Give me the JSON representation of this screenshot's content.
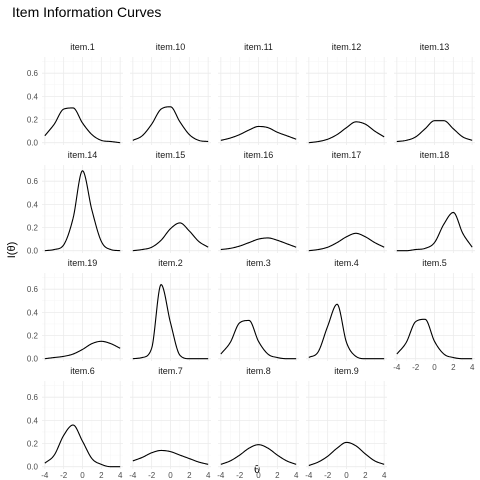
{
  "chart_data": {
    "type": "line",
    "title": "Item Information Curves",
    "xlabel": "θ",
    "ylabel": "I(θ)",
    "xlim": [
      -4.3,
      4.3
    ],
    "ylim": [
      -0.02,
      0.74
    ],
    "x_ticks": [
      -4,
      -2,
      0,
      2,
      4
    ],
    "y_ticks": [
      0.0,
      0.2,
      0.4,
      0.6
    ],
    "x_tick_labels": [
      "-4",
      "-2",
      "0",
      "2",
      "4"
    ],
    "y_tick_labels": [
      "0.0",
      "0.2",
      "0.4",
      "0.6"
    ],
    "grid": true,
    "x_sample": [
      -4,
      -3,
      -2,
      -1,
      0,
      1,
      2,
      3,
      4
    ],
    "panels": [
      {
        "name": "item.1",
        "values": [
          0.06,
          0.16,
          0.29,
          0.3,
          0.17,
          0.07,
          0.02,
          0.01,
          0.0
        ]
      },
      {
        "name": "item.10",
        "values": [
          0.02,
          0.06,
          0.16,
          0.29,
          0.31,
          0.18,
          0.07,
          0.02,
          0.01
        ]
      },
      {
        "name": "item.11",
        "values": [
          0.02,
          0.04,
          0.07,
          0.11,
          0.14,
          0.13,
          0.09,
          0.06,
          0.03
        ]
      },
      {
        "name": "item.12",
        "values": [
          0.0,
          0.01,
          0.03,
          0.07,
          0.13,
          0.18,
          0.16,
          0.1,
          0.05
        ]
      },
      {
        "name": "item.13",
        "values": [
          0.01,
          0.02,
          0.05,
          0.12,
          0.19,
          0.19,
          0.12,
          0.05,
          0.02
        ]
      },
      {
        "name": "item.14",
        "values": [
          0.0,
          0.01,
          0.05,
          0.28,
          0.69,
          0.35,
          0.08,
          0.01,
          0.0
        ]
      },
      {
        "name": "item.15",
        "values": [
          0.0,
          0.01,
          0.03,
          0.09,
          0.19,
          0.24,
          0.17,
          0.08,
          0.03
        ]
      },
      {
        "name": "item.16",
        "values": [
          0.01,
          0.02,
          0.04,
          0.07,
          0.1,
          0.11,
          0.09,
          0.06,
          0.03
        ]
      },
      {
        "name": "item.17",
        "values": [
          0.0,
          0.01,
          0.03,
          0.07,
          0.12,
          0.15,
          0.12,
          0.07,
          0.03
        ]
      },
      {
        "name": "item.18",
        "values": [
          0.0,
          0.0,
          0.01,
          0.02,
          0.07,
          0.23,
          0.33,
          0.15,
          0.03
        ]
      },
      {
        "name": "item.19",
        "values": [
          0.0,
          0.01,
          0.02,
          0.04,
          0.08,
          0.13,
          0.15,
          0.13,
          0.09
        ]
      },
      {
        "name": "item.2",
        "values": [
          0.0,
          0.01,
          0.09,
          0.64,
          0.31,
          0.03,
          0.0,
          0.0,
          0.0
        ]
      },
      {
        "name": "item.3",
        "values": [
          0.04,
          0.14,
          0.31,
          0.33,
          0.15,
          0.04,
          0.01,
          0.0,
          0.0
        ]
      },
      {
        "name": "item.4",
        "values": [
          0.01,
          0.06,
          0.28,
          0.47,
          0.14,
          0.02,
          0.0,
          0.0,
          0.0
        ]
      },
      {
        "name": "item.5",
        "values": [
          0.04,
          0.14,
          0.32,
          0.34,
          0.15,
          0.04,
          0.01,
          0.0,
          0.0
        ]
      },
      {
        "name": "item.6",
        "values": [
          0.03,
          0.1,
          0.27,
          0.36,
          0.22,
          0.07,
          0.02,
          0.0,
          0.0
        ]
      },
      {
        "name": "item.7",
        "values": [
          0.05,
          0.08,
          0.12,
          0.14,
          0.13,
          0.1,
          0.07,
          0.04,
          0.02
        ]
      },
      {
        "name": "item.8",
        "values": [
          0.02,
          0.05,
          0.1,
          0.16,
          0.19,
          0.16,
          0.1,
          0.05,
          0.02
        ]
      },
      {
        "name": "item.9",
        "values": [
          0.01,
          0.04,
          0.09,
          0.16,
          0.21,
          0.18,
          0.11,
          0.05,
          0.02
        ]
      }
    ]
  }
}
